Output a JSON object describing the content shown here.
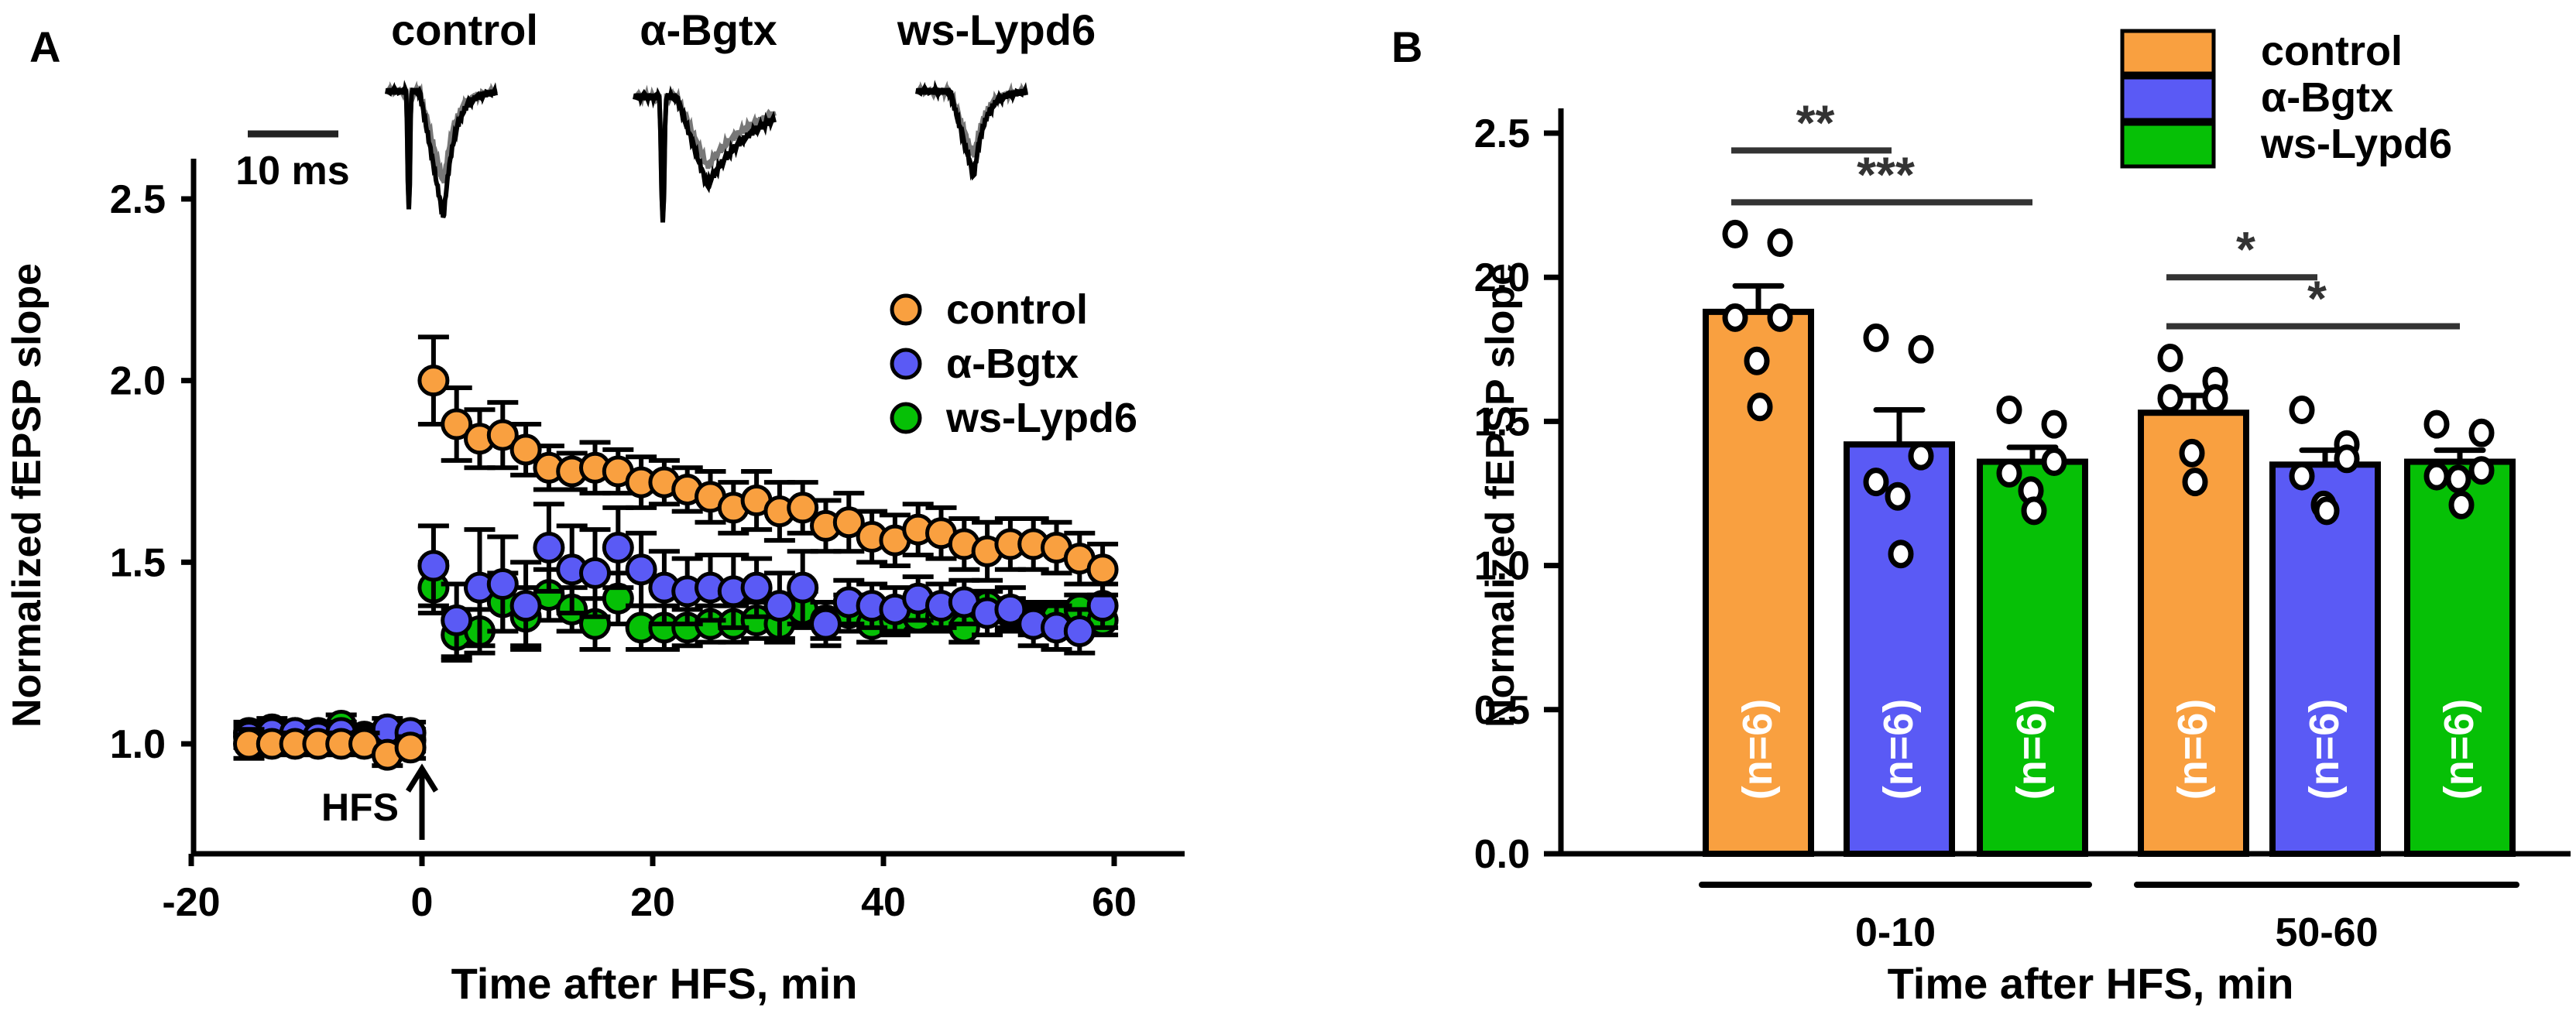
{
  "colors": {
    "control": "#F9A040",
    "bgtx": "#5A5AF5",
    "lypd6": "#06C006",
    "axis": "#000000",
    "sig": "#333333",
    "trace_before": "#777777",
    "trace_after": "#000000"
  },
  "chart_data": [
    {
      "panel": "A",
      "type": "scatter",
      "panel_label": "A",
      "xlabel": "Time after HFS, min",
      "ylabel": "Normalized fEPSP slope",
      "xlim": [
        -20,
        70
      ],
      "ylim": [
        0.7,
        2.6
      ],
      "xticks": [
        -20,
        0,
        20,
        40,
        60
      ],
      "xtick_labels": [
        "-20",
        "0",
        "20",
        "40",
        "60"
      ],
      "yticks": [
        1.0,
        1.5,
        2.0,
        2.5
      ],
      "ytick_labels": [
        "1.0",
        "1.5",
        "2.0",
        "2.5"
      ],
      "grid": false,
      "legend_position": "upper-right",
      "annotation": {
        "text": "HFS",
        "x": 0,
        "arrow": "up"
      },
      "traces": {
        "scale_bar_label": "10 ms",
        "labels": [
          "control",
          "α-Bgtx",
          "ws-Lypd6"
        ]
      },
      "series": [
        {
          "name": "control",
          "color_key": "control",
          "x": [
            -15,
            -13,
            -11,
            -9,
            -7,
            -5,
            -3,
            -1,
            1,
            3,
            5,
            7,
            9,
            11,
            13,
            15,
            17,
            19,
            21,
            23,
            25,
            27,
            29,
            31,
            33,
            35,
            37,
            39,
            41,
            43,
            45,
            47,
            49,
            51,
            53,
            55,
            57,
            59
          ],
          "y": [
            1.0,
            1.0,
            1.0,
            1.0,
            1.0,
            1.0,
            0.97,
            0.99,
            2.0,
            1.88,
            1.84,
            1.85,
            1.81,
            1.76,
            1.75,
            1.76,
            1.75,
            1.72,
            1.72,
            1.7,
            1.68,
            1.65,
            1.67,
            1.64,
            1.65,
            1.6,
            1.61,
            1.57,
            1.56,
            1.59,
            1.58,
            1.55,
            1.53,
            1.55,
            1.55,
            1.54,
            1.51,
            1.48
          ],
          "err": [
            0.04,
            0.03,
            0.03,
            0.03,
            0.03,
            0.03,
            0.03,
            0.03,
            0.12,
            0.1,
            0.08,
            0.09,
            0.07,
            0.06,
            0.05,
            0.07,
            0.06,
            0.07,
            0.06,
            0.06,
            0.07,
            0.07,
            0.08,
            0.08,
            0.07,
            0.07,
            0.08,
            0.07,
            0.07,
            0.07,
            0.07,
            0.07,
            0.08,
            0.07,
            0.07,
            0.07,
            0.07,
            0.07
          ]
        },
        {
          "name": "α-Bgtx",
          "color_key": "bgtx",
          "x": [
            -15,
            -13,
            -11,
            -9,
            -7,
            -5,
            -3,
            -1,
            1,
            3,
            5,
            7,
            9,
            11,
            13,
            15,
            17,
            19,
            21,
            23,
            25,
            27,
            29,
            31,
            33,
            35,
            37,
            39,
            41,
            43,
            45,
            47,
            49,
            51,
            53,
            55,
            57,
            59
          ],
          "y": [
            1.02,
            1.03,
            1.03,
            1.02,
            1.03,
            1.01,
            1.04,
            1.03,
            1.49,
            1.34,
            1.43,
            1.44,
            1.38,
            1.54,
            1.48,
            1.47,
            1.54,
            1.48,
            1.43,
            1.42,
            1.43,
            1.42,
            1.43,
            1.38,
            1.43,
            1.33,
            1.39,
            1.38,
            1.37,
            1.4,
            1.38,
            1.39,
            1.36,
            1.37,
            1.33,
            1.32,
            1.31,
            1.38
          ],
          "err": [
            0.03,
            0.03,
            0.03,
            0.03,
            0.03,
            0.03,
            0.03,
            0.03,
            0.11,
            0.1,
            0.16,
            0.13,
            0.12,
            0.12,
            0.12,
            0.12,
            0.11,
            0.1,
            0.1,
            0.09,
            0.09,
            0.1,
            0.08,
            0.09,
            0.1,
            0.06,
            0.06,
            0.06,
            0.06,
            0.06,
            0.06,
            0.06,
            0.06,
            0.06,
            0.06,
            0.06,
            0.06,
            0.06
          ]
        },
        {
          "name": "ws-Lypd6",
          "color_key": "lypd6",
          "x": [
            -15,
            -13,
            -11,
            -9,
            -7,
            -5,
            -3,
            -1,
            1,
            3,
            5,
            7,
            9,
            11,
            13,
            15,
            17,
            19,
            21,
            23,
            25,
            27,
            29,
            31,
            33,
            35,
            37,
            39,
            41,
            43,
            45,
            47,
            49,
            51,
            53,
            55,
            57,
            59
          ],
          "y": [
            1.03,
            1.04,
            1.03,
            1.03,
            1.05,
            1.02,
            1.0,
            1.01,
            1.43,
            1.3,
            1.31,
            1.39,
            1.35,
            1.41,
            1.37,
            1.33,
            1.4,
            1.32,
            1.32,
            1.32,
            1.33,
            1.33,
            1.34,
            1.33,
            1.37,
            1.34,
            1.36,
            1.33,
            1.34,
            1.35,
            1.35,
            1.32,
            1.38,
            1.36,
            1.34,
            1.35,
            1.37,
            1.34
          ],
          "err": [
            0.03,
            0.03,
            0.03,
            0.03,
            0.03,
            0.03,
            0.03,
            0.03,
            0.07,
            0.07,
            0.06,
            0.08,
            0.08,
            0.07,
            0.06,
            0.07,
            0.07,
            0.06,
            0.06,
            0.05,
            0.05,
            0.05,
            0.05,
            0.05,
            0.05,
            0.05,
            0.05,
            0.05,
            0.04,
            0.04,
            0.04,
            0.04,
            0.04,
            0.04,
            0.04,
            0.04,
            0.04,
            0.04
          ]
        }
      ]
    },
    {
      "panel": "B",
      "type": "bar",
      "panel_label": "B",
      "xlabel": "Time after HFS, min",
      "ylabel": "Normalized fEPSP slope",
      "ylim": [
        0,
        2.6
      ],
      "yticks": [
        0.0,
        0.5,
        1.0,
        1.5,
        2.0,
        2.5
      ],
      "ytick_labels": [
        "0.0",
        "0.5",
        "1.0",
        "1.5",
        "2.0",
        "2.5"
      ],
      "grid": false,
      "legend_position": "top-right",
      "legend": [
        "control",
        "α-Bgtx",
        "ws-Lypd6"
      ],
      "categories": [
        "0-10",
        "50-60"
      ],
      "series": [
        {
          "name": "control",
          "color_key": "control",
          "values": [
            1.88,
            1.53
          ],
          "sem": [
            0.09,
            0.06
          ],
          "n_label": "(n=6)",
          "points": [
            [
              2.15,
              2.12,
              1.86,
              1.86,
              1.71,
              1.55
            ],
            [
              1.72,
              1.64,
              1.58,
              1.58,
              1.39,
              1.29
            ]
          ]
        },
        {
          "name": "α-Bgtx",
          "color_key": "bgtx",
          "values": [
            1.42,
            1.35
          ],
          "sem": [
            0.12,
            0.05
          ],
          "n_label": "(n=6)",
          "points": [
            [
              1.79,
              1.75,
              1.38,
              1.29,
              1.24,
              1.04
            ],
            [
              1.54,
              1.42,
              1.37,
              1.31,
              1.21,
              1.19
            ]
          ]
        },
        {
          "name": "ws-Lypd6",
          "color_key": "lypd6",
          "values": [
            1.36,
            1.36
          ],
          "sem": [
            0.05,
            0.04
          ],
          "n_label": "(n=6)",
          "points": [
            [
              1.54,
              1.49,
              1.36,
              1.32,
              1.26,
              1.19
            ],
            [
              1.49,
              1.46,
              1.33,
              1.31,
              1.3,
              1.21
            ]
          ]
        }
      ],
      "significance": [
        {
          "group": "0-10",
          "from": 0,
          "to": 1,
          "label": "**",
          "y": 2.44
        },
        {
          "group": "0-10",
          "from": 0,
          "to": 2,
          "label": "***",
          "y": 2.26
        },
        {
          "group": "50-60",
          "from": 0,
          "to": 1,
          "label": "*",
          "y": 2.0
        },
        {
          "group": "50-60",
          "from": 0,
          "to": 2,
          "label": "*",
          "y": 1.83
        }
      ]
    }
  ]
}
